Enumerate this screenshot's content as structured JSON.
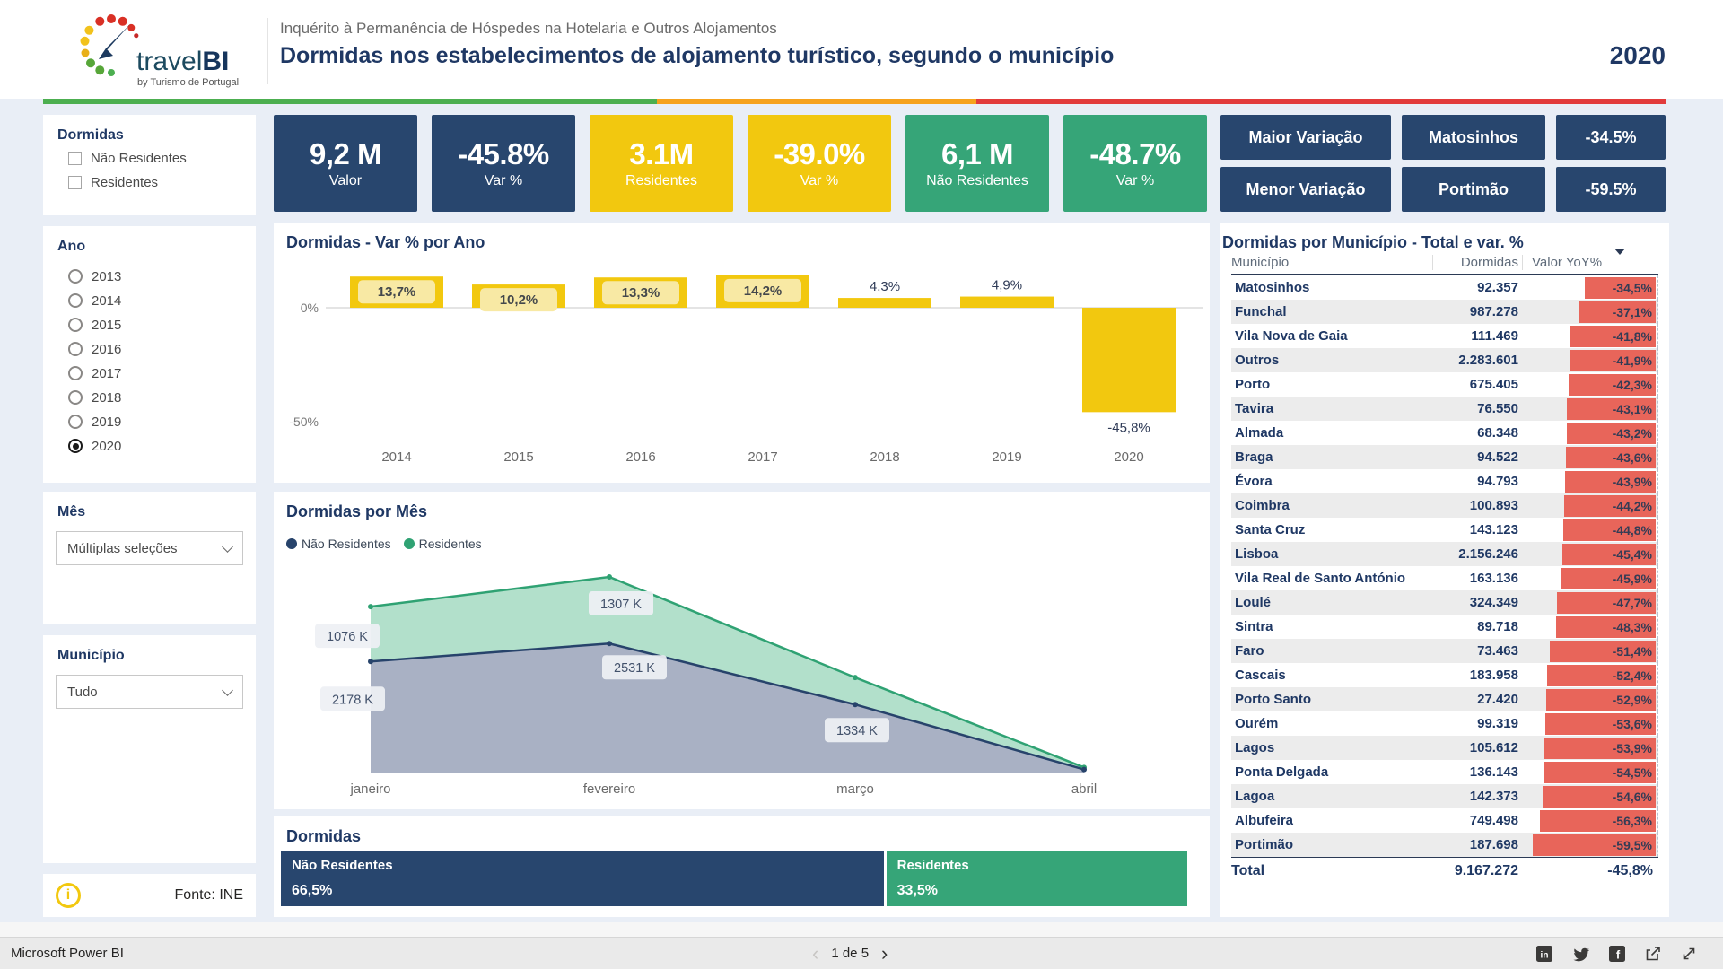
{
  "colors": {
    "navy": "#28466E",
    "navy-text": "#1F3864",
    "yellow": "#F2C80F",
    "green": "#36A578",
    "red-bar": "#E8655A",
    "strip-green": "#4CAF50",
    "strip-amber": "#F6A21D",
    "strip-red": "#E23B3B",
    "area-green-fill": "#B2E0CB",
    "area-green-line": "#2FA273",
    "area-navy-fill": "#A9B1C4",
    "area-navy-line": "#27436B",
    "chip-yellow": "#F8E9A4",
    "page-bg": "#E9EEF6"
  },
  "header": {
    "logo_text": "travel",
    "logo_bold": "BI",
    "logo_sub": "by Turismo de Portugal",
    "subtitle": "Inquérito à Permanência de Hóspedes na Hotelaria e Outros Alojamentos",
    "title": "Dormidas nos estabelecimentos de alojamento turístico, segundo o município",
    "year": "2020"
  },
  "sidebar": {
    "dormidas": {
      "title": "Dormidas",
      "options": [
        {
          "label": "Não Residentes",
          "checked": false
        },
        {
          "label": "Residentes",
          "checked": false
        }
      ]
    },
    "ano": {
      "title": "Ano",
      "options": [
        "2013",
        "2014",
        "2015",
        "2016",
        "2017",
        "2018",
        "2019",
        "2020"
      ],
      "selected": "2020"
    },
    "mes": {
      "title": "Mês",
      "value": "Múltiplas seleções"
    },
    "municipio": {
      "title": "Município",
      "value": "Tudo"
    },
    "fonte": "Fonte: INE"
  },
  "kpis": [
    {
      "value": "9,2 M",
      "label": "Valor",
      "color": "navy"
    },
    {
      "value": "-45.8%",
      "label": "Var %",
      "color": "navy"
    },
    {
      "value": "3.1M",
      "label": "Residentes",
      "color": "yellow"
    },
    {
      "value": "-39.0%",
      "label": "Var %",
      "color": "yellow"
    },
    {
      "value": "6,1 M",
      "label": "Não Residentes",
      "color": "green"
    },
    {
      "value": "-48.7%",
      "label": "Var %",
      "color": "green"
    }
  ],
  "variacao": {
    "rows": [
      {
        "label": "Maior Variação",
        "municipio": "Matosinhos",
        "value": "-34.5%"
      },
      {
        "label": "Menor Variação",
        "municipio": "Portimão",
        "value": "-59.5%"
      }
    ]
  },
  "chart_data": [
    {
      "id": "var_por_ano",
      "type": "bar",
      "title": "Dormidas - Var % por Ano",
      "categories": [
        "2014",
        "2015",
        "2016",
        "2017",
        "2018",
        "2019",
        "2020"
      ],
      "values": [
        13.7,
        10.2,
        13.3,
        14.2,
        4.3,
        4.9,
        -45.8
      ],
      "labels": [
        "13,7%",
        "10,2%",
        "13,3%",
        "14,2%",
        "4,3%",
        "4,9%",
        "-45,8%"
      ],
      "axis_ticks": [
        "0%",
        "-50%"
      ],
      "ylim": [
        -50,
        20
      ],
      "grid": "zero-line-only"
    },
    {
      "id": "por_mes",
      "type": "area",
      "title": "Dormidas por Mês",
      "stacked": true,
      "unit": "K",
      "categories": [
        "janeiro",
        "fevereiro",
        "março",
        "abril"
      ],
      "series": [
        {
          "name": "Não Residentes",
          "values": [
            2178,
            2531,
            1334,
            60
          ],
          "labels": [
            "2178 K",
            "2531 K",
            "1334 K",
            null
          ]
        },
        {
          "name": "Residentes",
          "values": [
            1076,
            1307,
            530,
            40
          ],
          "labels": [
            "1076 K",
            "1307 K",
            null,
            null
          ]
        }
      ],
      "legend_position": "top-left"
    },
    {
      "id": "quota",
      "type": "bar-100",
      "title": "Dormidas",
      "segments": [
        {
          "label": "Não Residentes",
          "value": "66,5%",
          "pct": 66.5,
          "color": "navy"
        },
        {
          "label": "Residentes",
          "value": "33,5%",
          "pct": 33.5,
          "color": "green"
        }
      ]
    }
  ],
  "table": {
    "title": "Dormidas por Município - Total e var. %",
    "columns": [
      "Município",
      "Dormidas",
      "Valor YoY%"
    ],
    "sort": {
      "column": "Valor YoY%",
      "direction": "desc"
    },
    "rows": [
      [
        "Matosinhos",
        "92.357",
        "-34,5%",
        34.5
      ],
      [
        "Funchal",
        "987.278",
        "-37,1%",
        37.1
      ],
      [
        "Vila Nova de Gaia",
        "111.469",
        "-41,8%",
        41.8
      ],
      [
        "Outros",
        "2.283.601",
        "-41,9%",
        41.9
      ],
      [
        "Porto",
        "675.405",
        "-42,3%",
        42.3
      ],
      [
        "Tavira",
        "76.550",
        "-43,1%",
        43.1
      ],
      [
        "Almada",
        "68.348",
        "-43,2%",
        43.2
      ],
      [
        "Braga",
        "94.522",
        "-43,6%",
        43.6
      ],
      [
        "Évora",
        "94.793",
        "-43,9%",
        43.9
      ],
      [
        "Coimbra",
        "100.893",
        "-44,2%",
        44.2
      ],
      [
        "Santa Cruz",
        "143.123",
        "-44,8%",
        44.8
      ],
      [
        "Lisboa",
        "2.156.246",
        "-45,4%",
        45.4
      ],
      [
        "Vila Real de Santo António",
        "163.136",
        "-45,9%",
        45.9
      ],
      [
        "Loulé",
        "324.349",
        "-47,7%",
        47.7
      ],
      [
        "Sintra",
        "89.718",
        "-48,3%",
        48.3
      ],
      [
        "Faro",
        "73.463",
        "-51,4%",
        51.4
      ],
      [
        "Cascais",
        "183.958",
        "-52,4%",
        52.4
      ],
      [
        "Porto Santo",
        "27.420",
        "-52,9%",
        52.9
      ],
      [
        "Ourém",
        "99.319",
        "-53,6%",
        53.6
      ],
      [
        "Lagos",
        "105.612",
        "-53,9%",
        53.9
      ],
      [
        "Ponta Delgada",
        "136.143",
        "-54,5%",
        54.5
      ],
      [
        "Lagoa",
        "142.373",
        "-54,6%",
        54.6
      ],
      [
        "Albufeira",
        "749.498",
        "-56,3%",
        56.3
      ],
      [
        "Portimão",
        "187.698",
        "-59,5%",
        59.5
      ]
    ],
    "total": {
      "label": "Total",
      "dormidas": "9.167.272",
      "yoy": "-45,8%"
    }
  },
  "statusbar": {
    "app": "Microsoft Power BI",
    "page": "1 de 5",
    "icons": {
      "chevron_left": "‹",
      "chevron_right": "›",
      "linkedin": "in",
      "twitter": "twitter-bird",
      "facebook": "f",
      "share": "share-arrow",
      "fullscreen": "diagonal-arrows"
    }
  }
}
